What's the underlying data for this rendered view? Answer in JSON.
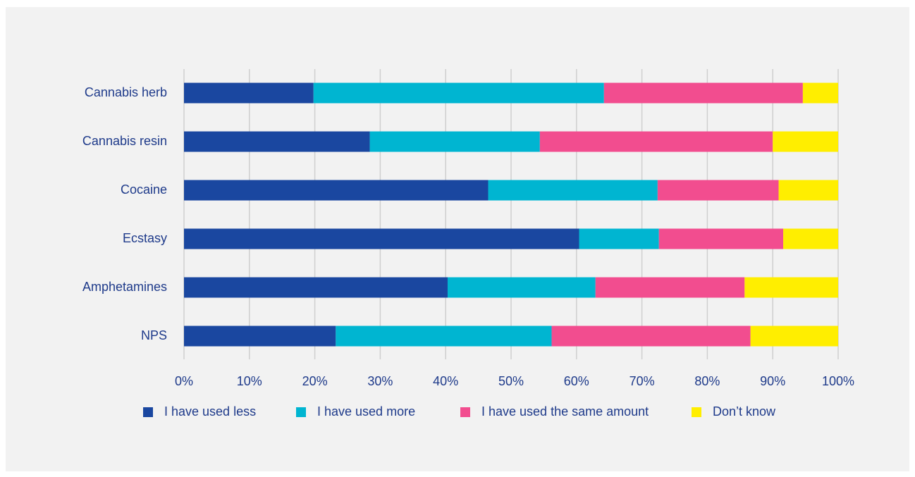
{
  "chart_data": {
    "type": "bar",
    "orientation": "horizontal",
    "stacked": true,
    "categories": [
      "Cannabis herb",
      "Cannabis resin",
      "Cocaine",
      "Ecstasy",
      "Amphetamines",
      "NPS"
    ],
    "series": [
      {
        "name": "I have used less",
        "color": "#1a47a0",
        "values": [
          19.8,
          28.4,
          46.5,
          60.4,
          40.3,
          23.2
        ]
      },
      {
        "name": "I have used more",
        "color": "#00b5d1",
        "values": [
          44.4,
          26.0,
          25.9,
          12.2,
          22.6,
          33.0
        ]
      },
      {
        "name": "I have used the same amount",
        "color": "#f24d8f",
        "values": [
          30.4,
          35.6,
          18.5,
          19.0,
          22.8,
          30.4
        ]
      },
      {
        "name": "Don’t know",
        "color": "#ffee00",
        "values": [
          5.4,
          10.0,
          9.1,
          8.4,
          14.3,
          13.4
        ]
      }
    ],
    "xlim": [
      0,
      100
    ],
    "xticks": [
      "0%",
      "10%",
      "20%",
      "30%",
      "40%",
      "50%",
      "60%",
      "70%",
      "80%",
      "90%",
      "100%"
    ],
    "grid": "vertical",
    "legend_position": "bottom"
  }
}
